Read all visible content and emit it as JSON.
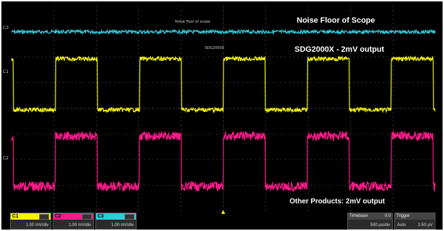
{
  "annotations": {
    "noise_floor": "Noise Floor of Scope",
    "sdg_output": "SDG2000X - 2mV output",
    "other_output": "Other Products: 2mV output",
    "small_noise_label": "Noise floor of scope",
    "small_sdg_label": "SDG2000X"
  },
  "channels": [
    {
      "name": "C1",
      "scale": "1.00 mV/div",
      "color": "#f5f500"
    },
    {
      "name": "C2",
      "scale": "1.00 mV/div",
      "color": "#ff1a8c"
    },
    {
      "name": "C3",
      "scale": "1.00 mV/div",
      "color": "#33c9d9"
    }
  ],
  "timebase": {
    "label": "Timebase",
    "value": "0.0",
    "scale": "500 µs/div"
  },
  "trigger": {
    "label": "Trigger",
    "value": "Auto",
    "level": "2.50 µV"
  },
  "colors": {
    "trace_cyan": "#33c9d9",
    "trace_yellow": "#f5f500",
    "trace_magenta": "#ff1a8c",
    "grid": "#5a5a5a"
  }
}
